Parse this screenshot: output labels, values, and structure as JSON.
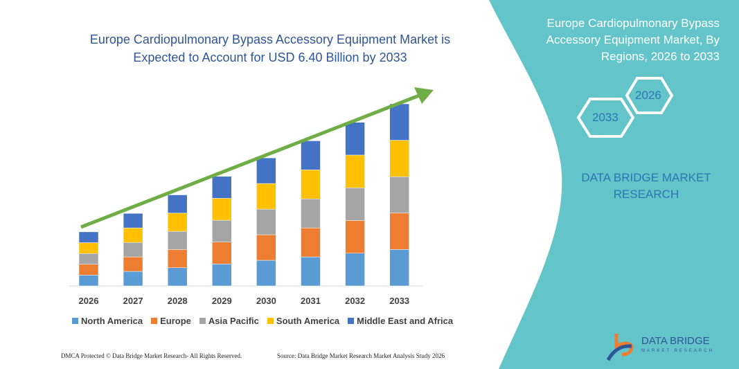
{
  "chart_data": {
    "type": "bar",
    "stacked": true,
    "title": "Europe Cardiopulmonary Bypass Accessory Equipment Market is Expected to Account for USD 6.40 Billion by 2033",
    "categories": [
      "2026",
      "2027",
      "2028",
      "2029",
      "2030",
      "2031",
      "2032",
      "2033"
    ],
    "series": [
      {
        "name": "North America",
        "color": "#5b9bd5",
        "values": [
          0.38,
          0.51,
          0.64,
          0.77,
          0.9,
          1.02,
          1.15,
          1.28
        ]
      },
      {
        "name": "Europe",
        "color": "#ed7d31",
        "values": [
          0.38,
          0.51,
          0.64,
          0.77,
          0.9,
          1.02,
          1.15,
          1.28
        ]
      },
      {
        "name": "Asia Pacific",
        "color": "#a5a5a5",
        "values": [
          0.38,
          0.51,
          0.64,
          0.77,
          0.9,
          1.02,
          1.15,
          1.28
        ]
      },
      {
        "name": "South America",
        "color": "#ffc000",
        "values": [
          0.38,
          0.51,
          0.64,
          0.77,
          0.9,
          1.02,
          1.15,
          1.28
        ]
      },
      {
        "name": "Middle East and Africa",
        "color": "#4472c4",
        "values": [
          0.38,
          0.51,
          0.64,
          0.77,
          0.9,
          1.02,
          1.15,
          1.28
        ]
      }
    ],
    "ylim": [
      0,
      6.4
    ],
    "grid": false,
    "legend": "bottom",
    "trend_arrow_color": "#70ad47"
  },
  "side_panel": {
    "title": "Europe Cardiopulmonary Bypass Accessory Equipment Market, By Regions, 2026 to 2033",
    "hex_start": "2026",
    "hex_end": "2033",
    "brand": "DATA BRIDGE MARKET RESEARCH",
    "color": "#63c5c9"
  },
  "footer": {
    "copyright": "DMCA Protected © Data Bridge Market Research- All Rights Reserved.",
    "source": "Source: Data Bridge Market Research Market Analysis Study 2026",
    "logo": "DATA BRIDGE",
    "logo_sub": "MARKET RESEARCH"
  }
}
